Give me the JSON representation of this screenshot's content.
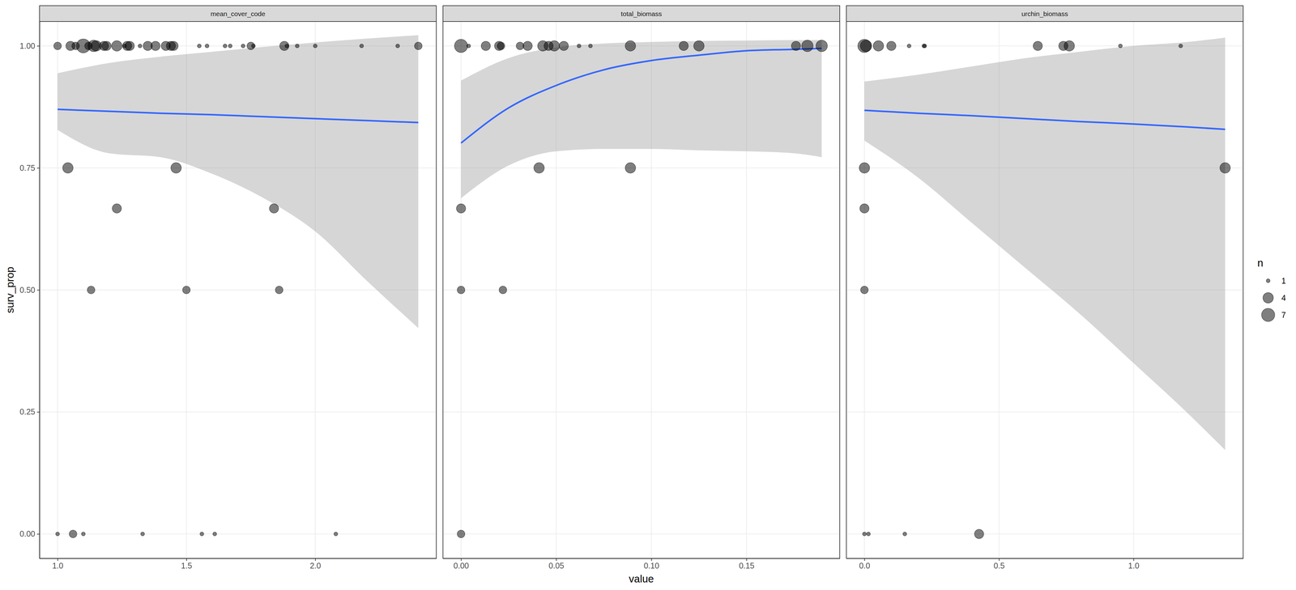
{
  "chart_data": {
    "type": "scatter",
    "xlabel": "value",
    "ylabel": "surv_prop",
    "ylim": [
      -0.05,
      1.05
    ],
    "yticks": [
      {
        "value": 0,
        "label": "0.00"
      },
      0.25,
      {
        "value": 0.5,
        "label": "0.50"
      },
      0.75,
      {
        "value": 1,
        "label": "1.00"
      }
    ],
    "grid": true,
    "legend": "right",
    "size_title": "n",
    "size_ticks": [
      1,
      4,
      7
    ],
    "panels": [
      {
        "title": "mean_cover_code",
        "xlim": [
          0.93,
          2.47
        ],
        "xticks": [
          {
            "value": 1,
            "label": "1.0"
          },
          1.5,
          {
            "value": 2,
            "label": "2.0"
          }
        ],
        "series": [
          {
            "type": "scatter",
            "color": "#000000",
            "marker": "circle",
            "x": [
              1.0,
              1.05,
              1.07,
              1.1,
              1.12,
              1.14,
              1.15,
              1.18,
              1.19,
              1.23,
              1.26,
              1.27,
              1.28,
              1.32,
              1.35,
              1.38,
              1.42,
              1.44,
              1.45,
              1.55,
              1.58,
              1.65,
              1.67,
              1.72,
              1.75,
              1.76,
              1.88,
              1.89,
              1.93,
              2.0,
              2.18,
              2.32,
              2.4,
              1.04,
              1.46,
              1.23,
              1.84,
              1.13,
              1.5,
              1.86,
              1.0,
              1.06,
              1.1,
              1.33,
              1.56,
              1.61,
              2.08
            ],
            "values": [
              1,
              1,
              1,
              1,
              1,
              1,
              1,
              1,
              1,
              1,
              1,
              1,
              1,
              1,
              1,
              1,
              1,
              1,
              1,
              1,
              1,
              1,
              1,
              1,
              1,
              1,
              1,
              1,
              1,
              1,
              1,
              1,
              1,
              0.75,
              0.75,
              0.667,
              0.667,
              0.5,
              0.5,
              0.5,
              0,
              0,
              0,
              0,
              0,
              0,
              0
            ],
            "size": [
              2,
              3,
              2,
              8,
              2,
              5,
              4,
              3,
              3,
              4,
              1,
              3,
              3,
              1,
              3,
              3,
              3,
              3,
              3,
              1,
              1,
              1,
              1,
              1,
              2,
              1,
              3,
              1,
              1,
              1,
              1,
              1,
              2,
              4,
              4,
              3,
              3,
              2,
              2,
              2,
              1,
              2,
              1,
              1,
              1,
              1,
              1
            ]
          },
          {
            "type": "line",
            "color": "#3366FF",
            "x": [
              1.0,
              1.2,
              1.4,
              1.6,
              1.8,
              2.0,
              2.2,
              2.4
            ],
            "values": [
              0.87,
              0.866,
              0.862,
              0.859,
              0.855,
              0.851,
              0.847,
              0.843
            ],
            "lower": [
              0.828,
              0.78,
              0.772,
              0.738,
              0.688,
              0.62,
              0.519,
              0.422
            ],
            "upper": [
              0.944,
              0.965,
              0.978,
              0.988,
              0.998,
              1.007,
              1.015,
              1.022
            ]
          }
        ]
      },
      {
        "title": "total_biomass",
        "xlim": [
          -0.0095,
          0.199
        ],
        "xticks": [
          {
            "value": 0,
            "label": "0.00"
          },
          0.05,
          {
            "value": 0.1,
            "label": "0.10"
          },
          0.15
        ],
        "series": [
          {
            "type": "scatter",
            "color": "#000000",
            "marker": "circle",
            "x": [
              0,
              0.004,
              0.013,
              0.02,
              0.021,
              0.031,
              0.035,
              0.043,
              0.046,
              0.049,
              0.054,
              0.062,
              0.068,
              0.089,
              0.117,
              0.125,
              0.176,
              0.182,
              0.1895,
              0.041,
              0.089,
              0,
              0,
              0.022,
              0
            ],
            "values": [
              1,
              1,
              1,
              1,
              1,
              1,
              1,
              1,
              1,
              1,
              1,
              1,
              1,
              1,
              1,
              1,
              1,
              1,
              1,
              0.75,
              0.75,
              0.667,
              0.5,
              0.5,
              0
            ],
            "size": [
              7,
              1,
              3,
              3,
              2,
              2,
              3,
              4,
              3,
              4,
              3,
              1,
              1,
              4,
              3,
              4,
              3,
              5,
              5,
              4,
              4,
              3,
              2,
              2,
              2
            ]
          },
          {
            "type": "line",
            "color": "#3366FF",
            "x": [
              0,
              0.025,
              0.05,
              0.075,
              0.1,
              0.125,
              0.15,
              0.175,
              0.1895
            ],
            "values": [
              0.801,
              0.873,
              0.919,
              0.951,
              0.97,
              0.981,
              0.99,
              0.993,
              0.995
            ],
            "lower": [
              0.688,
              0.755,
              0.784,
              0.789,
              0.789,
              0.786,
              0.784,
              0.78,
              0.772
            ],
            "upper": [
              0.929,
              0.975,
              0.997,
              1.005,
              1.008,
              1.01,
              1.011,
              1.012,
              1.012
            ]
          }
        ]
      },
      {
        "title": "urchin_biomass",
        "xlim": [
          -0.067,
          1.407
        ],
        "xticks": [
          {
            "value": 0,
            "label": "0.0"
          },
          0.5,
          {
            "value": 1,
            "label": "1.0"
          }
        ],
        "series": [
          {
            "type": "scatter",
            "color": "#000000",
            "marker": "circle",
            "x": [
              0,
              0.006,
              0.052,
              0.1,
              0.166,
              0.221,
              0.224,
              0.644,
              0.739,
              0.761,
              0.951,
              1.175,
              0,
              1.34,
              0,
              0,
              0,
              0.015,
              0.15,
              0.426
            ],
            "values": [
              1,
              1,
              1,
              1,
              1,
              1,
              1,
              1,
              1,
              1,
              1,
              1,
              0.75,
              0.75,
              0.667,
              0.5,
              0,
              0,
              0,
              0
            ],
            "size": [
              7,
              5,
              4,
              3,
              1,
              1,
              1,
              3,
              3,
              4,
              1,
              1,
              4,
              4,
              3,
              2,
              1,
              1,
              1,
              3
            ]
          },
          {
            "type": "line",
            "color": "#3366FF",
            "x": [
              0,
              0.2,
              0.4,
              0.6,
              0.8,
              1.0,
              1.2,
              1.34
            ],
            "values": [
              0.868,
              0.862,
              0.857,
              0.851,
              0.845,
              0.84,
              0.834,
              0.829
            ],
            "lower": [
              0.806,
              0.73,
              0.637,
              0.544,
              0.451,
              0.35,
              0.248,
              0.172
            ],
            "upper": [
              0.927,
              0.941,
              0.958,
              0.975,
              0.988,
              1.0,
              1.008,
              1.017
            ]
          }
        ]
      }
    ]
  }
}
